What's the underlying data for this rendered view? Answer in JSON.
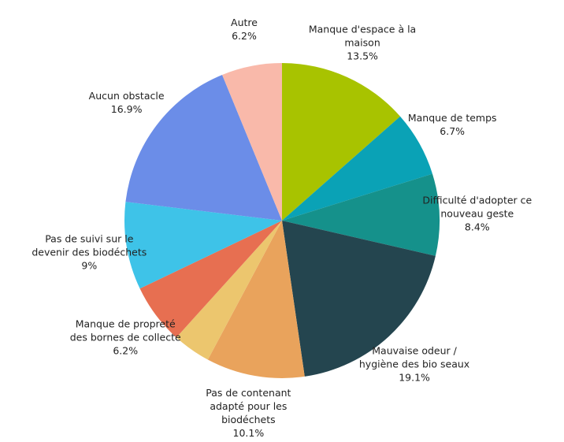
{
  "chart_data": {
    "type": "pie",
    "categories": [
      "Manque d'espace à la maison",
      "Manque de temps",
      "Difficulté d'adopter ce nouveau geste",
      "Mauvaise odeur / hygiène des bio seaux",
      "Pas de contenant adapté pour les biodéchets",
      null,
      "Manque de propreté des bornes de collecte",
      "Pas de suivi sur le devenir des biodéchets",
      "Aucun obstacle",
      "Autre"
    ],
    "values": [
      13.5,
      6.7,
      8.4,
      19.1,
      10.1,
      3.9,
      6.2,
      9,
      16.9,
      6.2
    ],
    "value_labels": [
      "13.5%",
      "6.7%",
      "8.4%",
      "19.1%",
      "10.1%",
      null,
      "6.2%",
      "9%",
      "16.9%",
      "6.2%"
    ],
    "colors": [
      "#a8c300",
      "#0aa2b6",
      "#15918b",
      "#24454f",
      "#e9a35c",
      "#ecc66e",
      "#e76f51",
      "#3ec3e8",
      "#6b8de8",
      "#f9b9aa"
    ]
  }
}
